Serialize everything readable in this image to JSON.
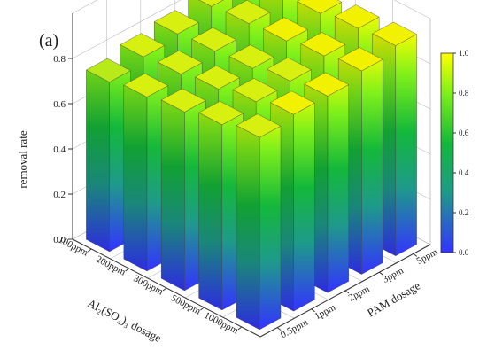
{
  "panel_label": "(a)",
  "colors": {
    "low": "#3333ff",
    "mid_low": "#1e9a8a",
    "mid": "#14b83a",
    "mid_high": "#7ff01a",
    "high": "#ffff00"
  },
  "chart_data": {
    "type": "bar3d",
    "title": "",
    "xlabel": "Al₂(SO₄)₃ dosage",
    "ylabel": "PAM dosage",
    "zlabel": "removal rate",
    "x_categories": [
      "100ppm",
      "200ppm",
      "300ppm",
      "500ppm",
      "1000ppm"
    ],
    "y_categories": [
      "0.5ppm",
      "1ppm",
      "2ppm",
      "3ppm",
      "5ppm"
    ],
    "z_ticks": [
      "0.0",
      "0.2",
      "0.4",
      "0.6",
      "0.8"
    ],
    "zlim": [
      0,
      1.0
    ],
    "values": [
      [
        0.75,
        0.78,
        0.8,
        0.84,
        0.89
      ],
      [
        0.77,
        0.79,
        0.81,
        0.85,
        0.88
      ],
      [
        0.79,
        0.81,
        0.82,
        0.86,
        0.9
      ],
      [
        0.82,
        0.84,
        0.85,
        0.88,
        0.92
      ],
      [
        0.85,
        0.87,
        0.87,
        0.9,
        0.93
      ]
    ],
    "colorbar": {
      "range": [
        0,
        1.0
      ],
      "ticks": [
        "0.0",
        "0.2",
        "0.4",
        "0.6",
        "0.8",
        "1.0"
      ]
    },
    "grid": true
  }
}
